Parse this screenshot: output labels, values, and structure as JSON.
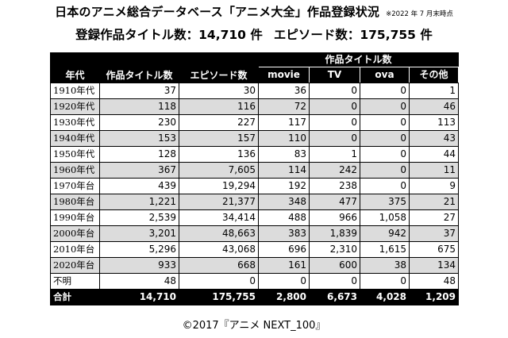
{
  "header": {
    "title": "日本のアニメ総合データベース「アニメ大全」作品登録状況",
    "note": "※2022 年 7 月末時点",
    "summary_titles": "登録作品タイトル数：14,710 件",
    "summary_episodes": "エピソード数：175,755 件"
  },
  "table": {
    "headers": {
      "era": "年代",
      "titles": "作品タイトル数",
      "episodes": "エピソード数",
      "group": "作品タイトル数",
      "movie": "movie",
      "tv": "TV",
      "ova": "ova",
      "other": "その他"
    },
    "rows": [
      {
        "era": "1910年代",
        "titles": "37",
        "episodes": "30",
        "movie": "36",
        "tv": "0",
        "ova": "0",
        "other": "1"
      },
      {
        "era": "1920年代",
        "titles": "118",
        "episodes": "116",
        "movie": "72",
        "tv": "0",
        "ova": "0",
        "other": "46"
      },
      {
        "era": "1930年代",
        "titles": "230",
        "episodes": "227",
        "movie": "117",
        "tv": "0",
        "ova": "0",
        "other": "113"
      },
      {
        "era": "1940年代",
        "titles": "153",
        "episodes": "157",
        "movie": "110",
        "tv": "0",
        "ova": "0",
        "other": "43"
      },
      {
        "era": "1950年代",
        "titles": "128",
        "episodes": "136",
        "movie": "83",
        "tv": "1",
        "ova": "0",
        "other": "44"
      },
      {
        "era": "1960年代",
        "titles": "367",
        "episodes": "7,605",
        "movie": "114",
        "tv": "242",
        "ova": "0",
        "other": "11"
      },
      {
        "era": "1970年台",
        "titles": "439",
        "episodes": "19,294",
        "movie": "192",
        "tv": "238",
        "ova": "0",
        "other": "9"
      },
      {
        "era": "1980年台",
        "titles": "1,221",
        "episodes": "21,377",
        "movie": "348",
        "tv": "477",
        "ova": "375",
        "other": "21"
      },
      {
        "era": "1990年台",
        "titles": "2,539",
        "episodes": "34,414",
        "movie": "488",
        "tv": "966",
        "ova": "1,058",
        "other": "27"
      },
      {
        "era": "2000年台",
        "titles": "3,201",
        "episodes": "48,663",
        "movie": "383",
        "tv": "1,839",
        "ova": "942",
        "other": "37"
      },
      {
        "era": "2010年台",
        "titles": "5,296",
        "episodes": "43,068",
        "movie": "696",
        "tv": "2,310",
        "ova": "1,615",
        "other": "675"
      },
      {
        "era": "2020年台",
        "titles": "933",
        "episodes": "668",
        "movie": "161",
        "tv": "600",
        "ova": "38",
        "other": "134"
      },
      {
        "era": "不明",
        "titles": "48",
        "episodes": "0",
        "movie": "0",
        "tv": "0",
        "ova": "0",
        "other": "48"
      }
    ],
    "total": {
      "era": "合計",
      "titles": "14,710",
      "episodes": "175,755",
      "movie": "2,800",
      "tv": "6,673",
      "ova": "4,028",
      "other": "1,209"
    }
  },
  "footer": {
    "copyright": "©2017『アニメ NEXT_100』"
  }
}
